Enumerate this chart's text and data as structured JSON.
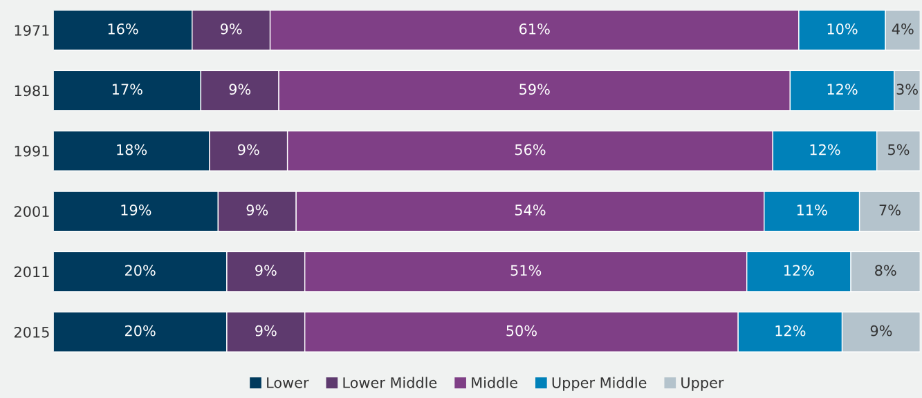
{
  "chart_data": {
    "type": "bar",
    "orientation": "horizontal",
    "stacked": true,
    "categories": [
      "1971",
      "1981",
      "1991",
      "2001",
      "2011",
      "2015"
    ],
    "series": [
      {
        "name": "Lower",
        "color": "#003a5d",
        "values": [
          16,
          17,
          18,
          19,
          20,
          20
        ],
        "value_labels": [
          "16%",
          "17%",
          "18%",
          "19%",
          "20%",
          "20%"
        ]
      },
      {
        "name": "Lower Middle",
        "color": "#5e3a6e",
        "values": [
          9,
          9,
          9,
          9,
          9,
          9
        ],
        "value_labels": [
          "9%",
          "9%",
          "9%",
          "9%",
          "9%",
          "9%"
        ]
      },
      {
        "name": "Middle",
        "color": "#7f3f86",
        "values": [
          61,
          59,
          56,
          54,
          51,
          50
        ],
        "value_labels": [
          "61%",
          "59%",
          "56%",
          "54%",
          "51%",
          "50%"
        ]
      },
      {
        "name": "Upper Middle",
        "color": "#0081b9",
        "values": [
          10,
          12,
          12,
          11,
          12,
          12
        ],
        "value_labels": [
          "10%",
          "12%",
          "12%",
          "11%",
          "12%",
          "12%"
        ]
      },
      {
        "name": "Upper",
        "color": "#b4c3cc",
        "values": [
          4,
          3,
          5,
          7,
          8,
          9
        ],
        "value_labels": [
          "4%",
          "3%",
          "5%",
          "7%",
          "8%",
          "9%"
        ]
      }
    ],
    "xlim": [
      0,
      100
    ],
    "tick_labels": "y",
    "grid": false,
    "legend": "bottom"
  }
}
